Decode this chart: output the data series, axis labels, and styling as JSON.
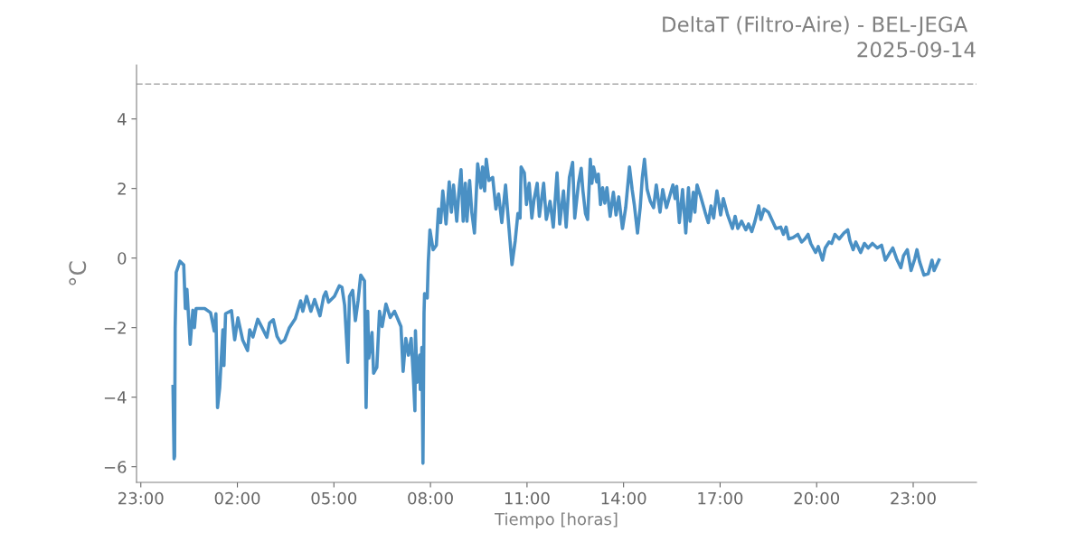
{
  "chart_data": {
    "type": "line",
    "title": "DeltaT (Filtro-Aire) - BEL-JEGA",
    "subtitle": "2025-09-14",
    "xlabel": "Tiempo [horas]",
    "ylabel": "°C",
    "x": [
      "2025-09-14T00:00",
      "2025-09-14T00:02",
      "2025-09-14T00:03",
      "2025-09-14T00:04",
      "2025-09-14T00:06",
      "2025-09-14T00:13",
      "2025-09-14T00:20",
      "2025-09-14T00:23",
      "2025-09-14T00:26",
      "2025-09-14T00:32",
      "2025-09-14T00:37",
      "2025-09-14T00:40",
      "2025-09-14T00:43",
      "2025-09-14T00:59",
      "2025-09-14T01:10",
      "2025-09-14T01:17",
      "2025-09-14T01:20",
      "2025-09-14T01:23",
      "2025-09-14T01:27",
      "2025-09-14T01:33",
      "2025-09-14T01:35",
      "2025-09-14T01:38",
      "2025-09-14T01:49",
      "2025-09-14T01:55",
      "2025-09-14T02:01",
      "2025-09-14T02:10",
      "2025-09-14T02:19",
      "2025-09-14T02:23",
      "2025-09-14T02:29",
      "2025-09-14T02:38",
      "2025-09-14T02:46",
      "2025-09-14T02:55",
      "2025-09-14T03:00",
      "2025-09-14T03:07",
      "2025-09-14T03:14",
      "2025-09-14T03:21",
      "2025-09-14T03:28",
      "2025-09-14T03:37",
      "2025-09-14T03:48",
      "2025-09-14T03:58",
      "2025-09-14T04:02",
      "2025-09-14T04:09",
      "2025-09-14T04:17",
      "2025-09-14T04:24",
      "2025-09-14T04:34",
      "2025-09-14T04:41",
      "2025-09-14T04:45",
      "2025-09-14T04:50",
      "2025-09-14T05:01",
      "2025-09-14T05:10",
      "2025-09-14T05:15",
      "2025-09-14T05:20",
      "2025-09-14T05:26",
      "2025-09-14T05:29",
      "2025-09-14T05:35",
      "2025-09-14T05:40",
      "2025-09-14T05:45",
      "2025-09-14T05:50",
      "2025-09-14T05:57",
      "2025-09-14T06:00",
      "2025-09-14T06:03",
      "2025-09-14T06:05",
      "2025-09-14T06:11",
      "2025-09-14T06:14",
      "2025-09-14T06:20",
      "2025-09-14T06:25",
      "2025-09-14T06:30",
      "2025-09-14T06:37",
      "2025-09-14T06:45",
      "2025-09-14T06:53",
      "2025-09-14T06:59",
      "2025-09-14T07:05",
      "2025-09-14T07:09",
      "2025-09-14T07:14",
      "2025-09-14T07:19",
      "2025-09-14T07:24",
      "2025-09-14T07:28",
      "2025-09-14T07:31",
      "2025-09-14T07:32",
      "2025-09-14T07:35",
      "2025-09-14T07:40",
      "2025-09-14T07:41",
      "2025-09-14T07:44",
      "2025-09-14T07:46",
      "2025-09-14T07:48",
      "2025-09-14T07:49",
      "2025-09-14T07:54",
      "2025-09-14T07:56",
      "2025-09-14T07:59",
      "2025-09-14T08:05",
      "2025-09-14T08:11",
      "2025-09-14T08:15",
      "2025-09-14T08:19",
      "2025-09-14T08:23",
      "2025-09-14T08:29",
      "2025-09-14T08:35",
      "2025-09-14T08:39",
      "2025-09-14T08:43",
      "2025-09-14T08:49",
      "2025-09-14T08:53",
      "2025-09-14T08:57",
      "2025-09-14T09:01",
      "2025-09-14T09:05",
      "2025-09-14T09:08",
      "2025-09-14T09:13",
      "2025-09-14T09:17",
      "2025-09-14T09:22",
      "2025-09-14T09:28",
      "2025-09-14T09:34",
      "2025-09-14T09:37",
      "2025-09-14T09:41",
      "2025-09-14T09:44",
      "2025-09-14T09:49",
      "2025-09-14T09:56",
      "2025-09-14T10:02",
      "2025-09-14T10:07",
      "2025-09-14T10:13",
      "2025-09-14T10:20",
      "2025-09-14T10:26",
      "2025-09-14T10:32",
      "2025-09-14T10:38",
      "2025-09-14T10:43",
      "2025-09-14T10:47",
      "2025-09-14T10:49",
      "2025-09-14T10:55",
      "2025-09-14T10:59",
      "2025-09-14T11:04",
      "2025-09-14T11:09",
      "2025-09-14T11:13",
      "2025-09-14T11:19",
      "2025-09-14T11:23",
      "2025-09-14T11:31",
      "2025-09-14T11:36",
      "2025-09-14T11:43",
      "2025-09-14T11:49",
      "2025-09-14T11:56",
      "2025-09-14T12:01",
      "2025-09-14T12:08",
      "2025-09-14T12:13",
      "2025-09-14T12:19",
      "2025-09-14T12:25",
      "2025-09-14T12:29",
      "2025-09-14T12:36",
      "2025-09-14T12:41",
      "2025-09-14T12:44",
      "2025-09-14T12:49",
      "2025-09-14T12:53",
      "2025-09-14T12:58",
      "2025-09-14T13:01",
      "2025-09-14T13:04",
      "2025-09-14T13:10",
      "2025-09-14T13:13",
      "2025-09-14T13:17",
      "2025-09-14T13:21",
      "2025-09-14T13:25",
      "2025-09-14T13:29",
      "2025-09-14T13:35",
      "2025-09-14T13:41",
      "2025-09-14T13:46",
      "2025-09-14T13:51",
      "2025-09-14T13:58",
      "2025-09-14T14:04",
      "2025-09-14T14:11",
      "2025-09-14T14:16",
      "2025-09-14T14:20",
      "2025-09-14T14:26",
      "2025-09-14T14:31",
      "2025-09-14T14:35",
      "2025-09-14T14:39",
      "2025-09-14T14:44",
      "2025-09-14T14:50",
      "2025-09-14T14:56",
      "2025-09-14T15:01",
      "2025-09-14T15:08",
      "2025-09-14T15:13",
      "2025-09-14T15:20",
      "2025-09-14T15:32",
      "2025-09-14T15:36",
      "2025-09-14T15:39",
      "2025-09-14T15:44",
      "2025-09-14T15:50",
      "2025-09-14T15:56",
      "2025-09-14T16:01",
      "2025-09-14T16:04",
      "2025-09-14T16:10",
      "2025-09-14T16:13",
      "2025-09-14T16:17",
      "2025-09-14T16:24",
      "2025-09-14T16:32",
      "2025-09-14T16:38",
      "2025-09-14T16:43",
      "2025-09-14T16:48",
      "2025-09-14T16:54",
      "2025-09-14T17:01",
      "2025-09-14T17:06",
      "2025-09-14T17:14",
      "2025-09-14T17:23",
      "2025-09-14T17:28",
      "2025-09-14T17:33",
      "2025-09-14T17:40",
      "2025-09-14T17:48",
      "2025-09-14T17:53",
      "2025-09-14T17:59",
      "2025-09-14T18:05",
      "2025-09-14T18:12",
      "2025-09-14T18:16",
      "2025-09-14T18:22",
      "2025-09-14T18:30",
      "2025-09-14T18:39",
      "2025-09-14T18:44",
      "2025-09-14T18:53",
      "2025-09-14T18:58",
      "2025-09-14T19:03",
      "2025-09-14T19:08",
      "2025-09-14T19:16",
      "2025-09-14T19:25",
      "2025-09-14T19:32",
      "2025-09-14T19:38",
      "2025-09-14T19:44",
      "2025-09-14T19:49",
      "2025-09-14T19:58",
      "2025-09-14T20:03",
      "2025-09-14T20:11",
      "2025-09-14T20:16",
      "2025-09-14T20:23",
      "2025-09-14T20:28",
      "2025-09-14T20:34",
      "2025-09-14T20:42",
      "2025-09-14T20:51",
      "2025-09-14T20:58",
      "2025-09-14T21:02",
      "2025-09-14T21:08",
      "2025-09-14T21:13",
      "2025-09-14T21:22",
      "2025-09-14T21:29",
      "2025-09-14T21:36",
      "2025-09-14T21:44",
      "2025-09-14T21:53",
      "2025-09-14T22:01",
      "2025-09-14T22:08",
      "2025-09-14T22:15",
      "2025-09-14T22:22",
      "2025-09-14T22:29",
      "2025-09-14T22:37",
      "2025-09-14T22:42",
      "2025-09-14T22:49",
      "2025-09-14T22:56",
      "2025-09-14T23:03",
      "2025-09-14T23:07",
      "2025-09-14T23:12",
      "2025-09-14T23:20",
      "2025-09-14T23:28",
      "2025-09-14T23:35",
      "2025-09-14T23:39",
      "2025-09-14T23:48"
    ],
    "values": [
      -3.69,
      -5.77,
      -5.7,
      -2.0,
      -0.41,
      -0.09,
      -0.2,
      -1.45,
      -0.9,
      -2.48,
      -1.5,
      -2.0,
      -1.45,
      -1.45,
      -1.57,
      -2.1,
      -1.6,
      -4.3,
      -3.74,
      -2.06,
      -3.09,
      -1.6,
      -1.51,
      -2.35,
      -1.72,
      -2.36,
      -2.66,
      -2.06,
      -2.27,
      -1.76,
      -2.0,
      -2.28,
      -1.87,
      -1.77,
      -2.25,
      -2.44,
      -2.36,
      -2.0,
      -1.74,
      -1.23,
      -1.53,
      -1.1,
      -1.53,
      -1.19,
      -1.66,
      -1.1,
      -0.97,
      -1.27,
      -1.1,
      -0.8,
      -0.84,
      -1.36,
      -3.0,
      -1.1,
      -0.93,
      -1.8,
      -1.23,
      -0.49,
      -0.66,
      -4.3,
      -1.53,
      -2.88,
      -2.14,
      -3.31,
      -3.14,
      -1.53,
      -1.97,
      -1.32,
      -1.71,
      -1.53,
      -1.75,
      -1.97,
      -3.26,
      -2.31,
      -2.79,
      -2.31,
      -3.39,
      -4.39,
      -2.09,
      -3.57,
      -2.79,
      -3.78,
      -2.57,
      -5.9,
      -1.58,
      -1.02,
      -1.15,
      -0.1,
      0.81,
      0.24,
      0.37,
      1.41,
      1.02,
      1.93,
      0.98,
      2.19,
      1.32,
      2.1,
      1.06,
      1.89,
      2.54,
      1.06,
      2.15,
      1.06,
      2.23,
      1.32,
      0.72,
      2.71,
      2.02,
      2.62,
      1.93,
      2.84,
      2.23,
      2.32,
      1.41,
      1.84,
      1.02,
      2.1,
      0.93,
      -0.19,
      0.5,
      1.28,
      1.15,
      2.62,
      2.45,
      1.54,
      2.15,
      1.15,
      1.67,
      2.15,
      1.2,
      2.15,
      1.11,
      1.63,
      0.89,
      2.45,
      0.98,
      1.93,
      0.89,
      2.32,
      2.75,
      1.15,
      2.15,
      2.58,
      1.97,
      1.28,
      1.11,
      2.84,
      2.15,
      2.62,
      2.19,
      2.41,
      1.54,
      2.02,
      1.58,
      2.02,
      1.2,
      1.89,
      1.24,
      1.76,
      0.85,
      1.45,
      2.62,
      1.97,
      1.54,
      0.72,
      1.45,
      2.32,
      2.84,
      1.97,
      1.63,
      1.45,
      2.1,
      1.32,
      1.97,
      1.45,
      2.1,
      1.71,
      2.06,
      1.02,
      1.97,
      0.72,
      2.02,
      1.06,
      1.89,
      1.32,
      2.1,
      1.76,
      1.32,
      1.02,
      1.5,
      1.15,
      1.93,
      1.24,
      1.71,
      1.24,
      0.85,
      1.2,
      0.85,
      1.06,
      0.81,
      0.98,
      0.76,
      1.06,
      1.5,
      1.11,
      1.41,
      1.32,
      1.02,
      0.85,
      0.89,
      0.68,
      0.89,
      0.55,
      0.59,
      0.68,
      0.46,
      0.55,
      0.68,
      0.42,
      0.16,
      0.33,
      -0.06,
      0.29,
      0.46,
      0.42,
      0.68,
      0.55,
      0.72,
      0.81,
      0.5,
      0.24,
      0.46,
      0.16,
      0.42,
      0.29,
      0.42,
      0.29,
      0.37,
      -0.06,
      0.12,
      0.29,
      -0.02,
      -0.28,
      0.07,
      0.24,
      -0.36,
      -0.02,
      0.24,
      -0.11,
      -0.49,
      -0.45,
      -0.06,
      -0.36,
      -0.06
    ],
    "color": "#4a90c4",
    "xlim": [
      "2025-09-13T22:52",
      "2025-09-15T00:58"
    ],
    "xticks": [
      {
        "value": "2025-09-13T23:00",
        "label": "23:00"
      },
      {
        "value": "2025-09-14T02:00",
        "label": "02:00"
      },
      {
        "value": "2025-09-14T05:00",
        "label": "05:00"
      },
      {
        "value": "2025-09-14T08:00",
        "label": "08:00"
      },
      {
        "value": "2025-09-14T11:00",
        "label": "11:00"
      },
      {
        "value": "2025-09-14T14:00",
        "label": "14:00"
      },
      {
        "value": "2025-09-14T17:00",
        "label": "17:00"
      },
      {
        "value": "2025-09-14T20:00",
        "label": "20:00"
      },
      {
        "value": "2025-09-14T23:00",
        "label": "23:00"
      }
    ],
    "ylim": [
      -6.45,
      5.55
    ],
    "yticks": [
      {
        "value": -6,
        "label": "−6"
      },
      {
        "value": -4,
        "label": "−4"
      },
      {
        "value": -2,
        "label": "−2"
      },
      0,
      2,
      4
    ],
    "ref_lines": [
      {
        "axis": "y",
        "value": 5,
        "color": "#bbbbbb",
        "line_style": "dashed"
      }
    ],
    "marker": "none",
    "line_style": "solid"
  }
}
